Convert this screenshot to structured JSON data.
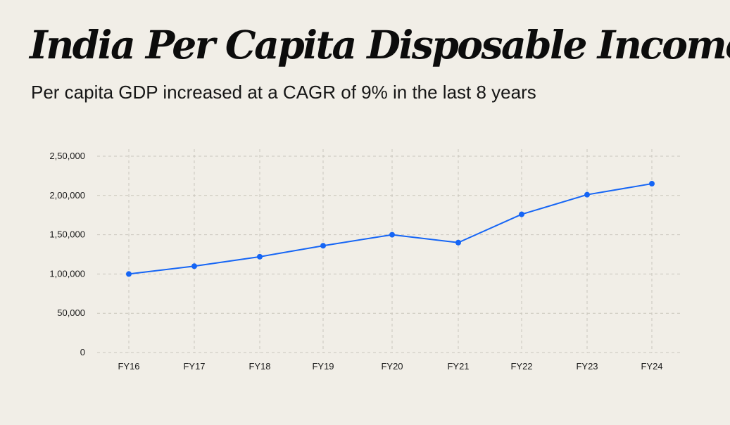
{
  "header": {
    "title": "India Per Capita Disposable Income",
    "subtitle": "Per capita GDP increased at a CAGR of 9% in the last 8 years"
  },
  "colors": {
    "background": "#f1eee7",
    "line": "#1565f5",
    "grid": "#c9c5bc"
  },
  "chart_data": {
    "type": "line",
    "title": "India Per Capita Disposable Income",
    "subtitle": "Per capita GDP increased at a CAGR of 9% in the last 8 years",
    "xlabel": "",
    "ylabel": "",
    "categories": [
      "FY16",
      "FY17",
      "FY18",
      "FY19",
      "FY20",
      "FY21",
      "FY22",
      "FY23",
      "FY24"
    ],
    "series": [
      {
        "name": "Per capita disposable income",
        "values": [
          100000,
          110000,
          122000,
          136000,
          150000,
          140000,
          176000,
          201000,
          215000
        ]
      }
    ],
    "yticks": [
      0,
      50000,
      100000,
      150000,
      200000,
      250000
    ],
    "ytick_labels": [
      "0",
      "50,000",
      "1,00,000",
      "1,50,000",
      "2,00,000",
      "2,50,000"
    ],
    "ylim": [
      0,
      250000
    ],
    "grid": true,
    "grid_style": "dashed",
    "legend": "none"
  }
}
